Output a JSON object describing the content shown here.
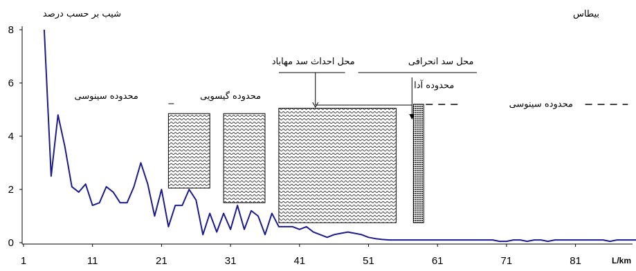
{
  "chart_data": {
    "type": "line",
    "ylabel": "شیب بر حسب درصد",
    "xlabel": "L/km",
    "title": "بیطاس",
    "ylim": [
      0,
      8
    ],
    "xlim": [
      1,
      90
    ],
    "yticks": [
      0,
      2,
      4,
      6,
      8
    ],
    "xticks": [
      1,
      11,
      21,
      31,
      41,
      51,
      61,
      71,
      81
    ],
    "grid": false,
    "series": [
      {
        "color": "#1a1a8c",
        "x": [
          4,
          5,
          6,
          7,
          8,
          9,
          10,
          11,
          12,
          13,
          14,
          15,
          16,
          17,
          18,
          19,
          20,
          21,
          22,
          23,
          24,
          25,
          26,
          27,
          28,
          29,
          30,
          31,
          32,
          33,
          34,
          35,
          36,
          37,
          38,
          39,
          40,
          41,
          42,
          43,
          44,
          45,
          46,
          47,
          48,
          49,
          50,
          51,
          52,
          53,
          54,
          55,
          56,
          57,
          58,
          59,
          60,
          61,
          62,
          63,
          64,
          65,
          66,
          67,
          68,
          69,
          70,
          71,
          72,
          73,
          74,
          75,
          76,
          77,
          78,
          79,
          80,
          81,
          82,
          83,
          84,
          85,
          86,
          87,
          88,
          89,
          90
        ],
        "y": [
          8.0,
          2.5,
          4.8,
          3.6,
          2.1,
          1.9,
          2.2,
          1.4,
          1.5,
          2.1,
          1.9,
          1.5,
          1.5,
          2.1,
          3.0,
          2.2,
          1.0,
          2.0,
          0.6,
          1.4,
          1.4,
          2.0,
          1.6,
          0.3,
          1.1,
          0.4,
          1.1,
          0.5,
          1.4,
          0.5,
          1.2,
          1.0,
          0.3,
          1.1,
          0.6,
          0.6,
          0.6,
          0.5,
          0.6,
          0.4,
          0.3,
          0.2,
          0.3,
          0.35,
          0.4,
          0.35,
          0.3,
          0.2,
          0.15,
          0.12,
          0.1,
          0.1,
          0.1,
          0.1,
          0.1,
          0.1,
          0.1,
          0.1,
          0.1,
          0.1,
          0.1,
          0.1,
          0.1,
          0.1,
          0.1,
          0.1,
          0.05,
          0.05,
          0.1,
          0.1,
          0.05,
          0.1,
          0.1,
          0.05,
          0.1,
          0.1,
          0.1,
          0.1,
          0.1,
          0.1,
          0.1,
          0.1,
          0.05,
          0.1,
          0.1,
          0.1,
          0.1
        ]
      }
    ],
    "zones": [
      {
        "label": "محدوده سینوسی",
        "x": 13,
        "y": 5.4
      },
      {
        "label": "محدوده گیسویی",
        "x": 31,
        "y": 5.4
      },
      {
        "label": "محدوده آدا",
        "x": 60.5,
        "y": 5.8
      },
      {
        "label": "محدوده سینوسی",
        "x": 76,
        "y": 5.1
      }
    ],
    "annotations": [
      {
        "label": "محل احداث سد مهاباد",
        "x": 43,
        "y": 6.7
      },
      {
        "label": "محل سد انحرافی",
        "x": 61.5,
        "y": 6.7
      }
    ],
    "hatched_regions": [
      {
        "x0": 22,
        "x1": 28,
        "y0": 2.05,
        "y1": 4.85
      },
      {
        "x0": 30,
        "x1": 36,
        "y0": 1.5,
        "y1": 4.85
      },
      {
        "x0": 38,
        "x1": 55,
        "y0": 0.75,
        "y1": 5.05
      },
      {
        "x0": 57.5,
        "x1": 59,
        "y0": 0.75,
        "y1": 5.2
      }
    ]
  }
}
